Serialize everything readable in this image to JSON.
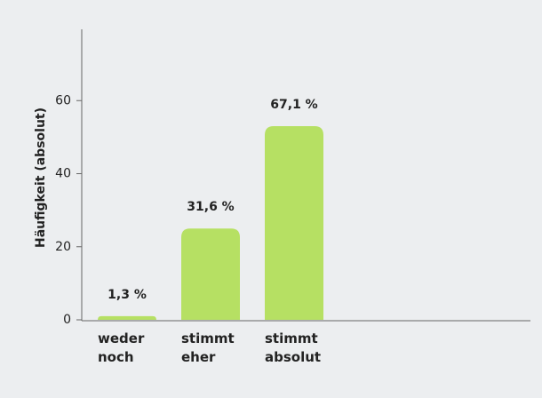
{
  "chart_data": {
    "type": "bar",
    "y_label": "Häufigkeit (absolut)",
    "categories": [
      "weder noch",
      "stimmt eher",
      "stimmt absolut"
    ],
    "values": [
      1,
      25,
      53
    ],
    "annotations": [
      "1,3 %",
      "31,6 %",
      "67,1 %"
    ],
    "color": "#b6e063",
    "ylim": [
      0,
      80
    ],
    "yticks": [
      0,
      20,
      40,
      60
    ]
  }
}
